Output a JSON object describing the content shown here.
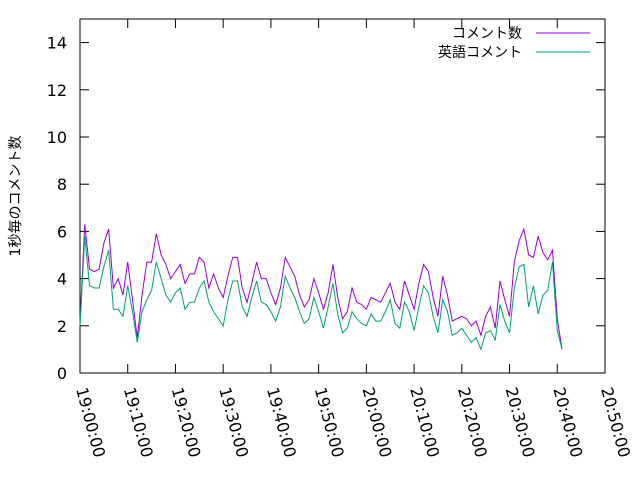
{
  "chart_data": {
    "type": "line",
    "title": "",
    "xlabel": "",
    "ylabel": "1秒毎のコメント数",
    "xlim": [
      "19:00:00",
      "20:50:00"
    ],
    "ylim": [
      0,
      15
    ],
    "x_ticks": [
      "19:00:00",
      "19:10:00",
      "19:20:00",
      "19:30:00",
      "19:40:00",
      "19:50:00",
      "20:00:00",
      "20:10:00",
      "20:20:00",
      "20:30:00",
      "20:40:00",
      "20:50:00"
    ],
    "y_ticks": [
      0,
      2,
      4,
      6,
      8,
      10,
      12,
      14
    ],
    "grid": false,
    "legend_position": "top-right",
    "x": [
      "19:00:00",
      "19:01:00",
      "19:02:00",
      "19:03:00",
      "19:04:00",
      "19:05:00",
      "19:06:00",
      "19:07:00",
      "19:08:00",
      "19:09:00",
      "19:10:00",
      "19:11:00",
      "19:12:00",
      "19:13:00",
      "19:14:00",
      "19:15:00",
      "19:16:00",
      "19:17:00",
      "19:18:00",
      "19:19:00",
      "19:20:00",
      "19:21:00",
      "19:22:00",
      "19:23:00",
      "19:24:00",
      "19:25:00",
      "19:26:00",
      "19:27:00",
      "19:28:00",
      "19:29:00",
      "19:30:00",
      "19:31:00",
      "19:32:00",
      "19:33:00",
      "19:34:00",
      "19:35:00",
      "19:36:00",
      "19:37:00",
      "19:38:00",
      "19:39:00",
      "19:40:00",
      "19:41:00",
      "19:42:00",
      "19:43:00",
      "19:44:00",
      "19:45:00",
      "19:46:00",
      "19:47:00",
      "19:48:00",
      "19:49:00",
      "19:50:00",
      "19:51:00",
      "19:52:00",
      "19:53:00",
      "19:54:00",
      "19:55:00",
      "19:56:00",
      "19:57:00",
      "19:58:00",
      "19:59:00",
      "20:00:00",
      "20:01:00",
      "20:02:00",
      "20:03:00",
      "20:04:00",
      "20:05:00",
      "20:06:00",
      "20:07:00",
      "20:08:00",
      "20:09:00",
      "20:10:00",
      "20:11:00",
      "20:12:00",
      "20:13:00",
      "20:14:00",
      "20:15:00",
      "20:16:00",
      "20:17:00",
      "20:18:00",
      "20:19:00",
      "20:20:00",
      "20:21:00",
      "20:22:00",
      "20:23:00",
      "20:24:00",
      "20:25:00",
      "20:26:00",
      "20:27:00",
      "20:28:00",
      "20:29:00",
      "20:30:00",
      "20:31:00",
      "20:32:00",
      "20:33:00",
      "20:34:00",
      "20:35:00",
      "20:36:00",
      "20:37:00",
      "20:38:00",
      "20:39:00",
      "20:40:00",
      "20:41:00"
    ],
    "series": [
      {
        "name": "コメント数",
        "color": "#9400d3",
        "values": [
          2.1,
          6.3,
          4.4,
          4.3,
          4.4,
          5.5,
          6.1,
          3.6,
          4.0,
          3.3,
          4.7,
          3.1,
          1.5,
          3.3,
          4.7,
          4.7,
          5.9,
          5.0,
          4.6,
          4.0,
          4.3,
          4.6,
          3.8,
          4.2,
          4.2,
          4.9,
          4.7,
          3.6,
          4.2,
          3.6,
          3.2,
          4.1,
          4.9,
          4.9,
          3.6,
          3.0,
          3.8,
          4.7,
          4.0,
          4.0,
          3.4,
          2.9,
          3.6,
          4.9,
          4.5,
          4.1,
          3.3,
          2.8,
          3.1,
          4.0,
          3.4,
          2.7,
          3.4,
          4.6,
          3.2,
          2.3,
          2.6,
          3.6,
          3.0,
          2.9,
          2.7,
          3.2,
          3.1,
          3.0,
          3.4,
          3.8,
          3.0,
          2.7,
          3.9,
          3.3,
          2.7,
          3.8,
          4.6,
          4.3,
          3.2,
          2.4,
          4.1,
          3.3,
          2.2,
          2.3,
          2.4,
          2.3,
          2.0,
          2.2,
          1.6,
          2.4,
          2.8,
          1.9,
          3.9,
          3.1,
          2.4,
          4.7,
          5.6,
          6.1,
          5.0,
          4.9,
          5.8,
          5.1,
          4.8,
          5.2,
          2.3,
          1.0
        ]
      },
      {
        "name": "英語コメント",
        "color": "#009e73",
        "values": [
          2.0,
          5.8,
          3.7,
          3.6,
          3.6,
          4.5,
          5.2,
          2.7,
          2.7,
          2.4,
          3.7,
          2.6,
          1.3,
          2.6,
          3.1,
          3.5,
          4.7,
          4.0,
          3.3,
          3.0,
          3.4,
          3.6,
          2.7,
          3.0,
          3.0,
          3.6,
          3.9,
          3.0,
          2.6,
          2.3,
          2.0,
          3.1,
          3.9,
          3.9,
          2.8,
          2.4,
          3.2,
          3.9,
          3.0,
          2.9,
          2.6,
          2.2,
          2.8,
          4.1,
          3.6,
          3.2,
          2.6,
          2.1,
          2.3,
          3.2,
          2.6,
          1.9,
          2.8,
          3.8,
          2.5,
          1.7,
          1.9,
          2.6,
          2.3,
          2.1,
          2.0,
          2.5,
          2.2,
          2.2,
          2.6,
          3.1,
          2.1,
          1.9,
          3.0,
          2.6,
          1.8,
          2.8,
          3.7,
          3.4,
          2.4,
          1.7,
          3.1,
          2.6,
          1.6,
          1.7,
          1.9,
          1.6,
          1.3,
          1.5,
          1.0,
          1.7,
          1.8,
          1.4,
          2.9,
          2.2,
          1.7,
          3.6,
          4.5,
          4.6,
          2.8,
          3.7,
          2.5,
          3.3,
          3.5,
          4.7,
          1.8,
          1.0
        ]
      }
    ]
  }
}
